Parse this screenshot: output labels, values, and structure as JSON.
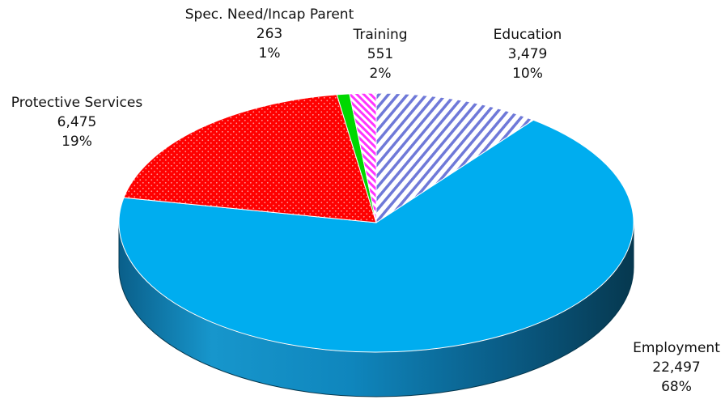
{
  "chart_data": {
    "type": "pie",
    "title": "",
    "slices": [
      {
        "name": "Education",
        "value": "3,479",
        "percent": "10%",
        "color": "#6f79d8",
        "pattern": "diagonal-stripes"
      },
      {
        "name": "Employment",
        "value": "22,497",
        "percent": "68%",
        "color": "#00adef",
        "pattern": "solid"
      },
      {
        "name": "Protective Services",
        "value": "6,475",
        "percent": "19%",
        "color": "#ff0000",
        "pattern": "dots"
      },
      {
        "name": "Spec. Need/Incap Parent",
        "value": "263",
        "percent": "1%",
        "color": "#00d800",
        "pattern": "solid"
      },
      {
        "name": "Training",
        "value": "551",
        "percent": "2%",
        "color": "#ff33ff",
        "pattern": "diagonal-stripes"
      }
    ],
    "legend": "none",
    "style": "3d-tilted"
  }
}
